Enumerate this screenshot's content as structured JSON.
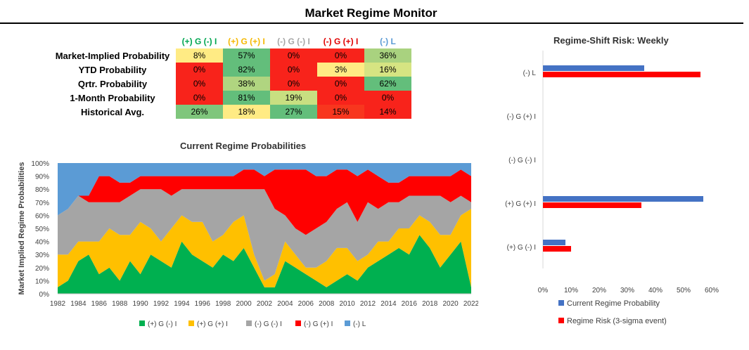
{
  "title": "Market Regime Monitor",
  "table": {
    "columns": [
      {
        "label": "(+) G (-) I",
        "color": "#00a651"
      },
      {
        "label": "(+) G (+) I",
        "color": "#f5b800"
      },
      {
        "label": "(-) G (-) I",
        "color": "#a6a6a6"
      },
      {
        "label": "(-) G (+) I",
        "color": "#e00000"
      },
      {
        "label": "(-) L",
        "color": "#5b9bd5"
      }
    ],
    "rows": [
      {
        "label": "Market-Implied Probability",
        "cells": [
          {
            "value": "8%",
            "bg": "#ffeb84"
          },
          {
            "value": "57%",
            "bg": "#63be7b"
          },
          {
            "value": "0%",
            "bg": "#f8231b"
          },
          {
            "value": "0%",
            "bg": "#f8231b"
          },
          {
            "value": "36%",
            "bg": "#a9d27f"
          }
        ]
      },
      {
        "label": "YTD Probability",
        "cells": [
          {
            "value": "0%",
            "bg": "#f8231b"
          },
          {
            "value": "82%",
            "bg": "#63be7b"
          },
          {
            "value": "0%",
            "bg": "#f8231b"
          },
          {
            "value": "3%",
            "bg": "#ffeb84"
          },
          {
            "value": "16%",
            "bg": "#d6e482"
          }
        ]
      },
      {
        "label": "Qrtr. Probability",
        "cells": [
          {
            "value": "0%",
            "bg": "#f8231b"
          },
          {
            "value": "38%",
            "bg": "#b0d580"
          },
          {
            "value": "0%",
            "bg": "#f8231b"
          },
          {
            "value": "0%",
            "bg": "#f8231b"
          },
          {
            "value": "62%",
            "bg": "#63be7b"
          }
        ]
      },
      {
        "label": "1-Month Probability",
        "cells": [
          {
            "value": "0%",
            "bg": "#f8231b"
          },
          {
            "value": "81%",
            "bg": "#63be7b"
          },
          {
            "value": "19%",
            "bg": "#c8df81"
          },
          {
            "value": "0%",
            "bg": "#f8231b"
          },
          {
            "value": "0%",
            "bg": "#f8231b"
          }
        ]
      },
      {
        "label": "Historical Avg.",
        "cells": [
          {
            "value": "26%",
            "bg": "#7fc67c"
          },
          {
            "value": "18%",
            "bg": "#ffeb84"
          },
          {
            "value": "27%",
            "bg": "#63be7b"
          },
          {
            "value": "15%",
            "bg": "#f8361e"
          },
          {
            "value": "14%",
            "bg": "#f8231b"
          }
        ]
      }
    ]
  },
  "chart_data": [
    {
      "type": "area",
      "title": "Current Regime Probabilities",
      "ylabel": "Market Implied Regime Probabilities",
      "x": [
        1982,
        1983,
        1984,
        1985,
        1986,
        1987,
        1988,
        1989,
        1990,
        1991,
        1992,
        1993,
        1994,
        1995,
        1996,
        1997,
        1998,
        1999,
        2000,
        2001,
        2002,
        2003,
        2004,
        2005,
        2006,
        2007,
        2008,
        2009,
        2010,
        2011,
        2012,
        2013,
        2014,
        2015,
        2016,
        2017,
        2018,
        2019,
        2020,
        2021,
        2022
      ],
      "x_ticks": [
        "1982",
        "1984",
        "1986",
        "1988",
        "1990",
        "1992",
        "1994",
        "1996",
        "1998",
        "2000",
        "2002",
        "2004",
        "2006",
        "2008",
        "2010",
        "2012",
        "2014",
        "2016",
        "2018",
        "2020",
        "2022"
      ],
      "y_ticks": [
        "0%",
        "10%",
        "20%",
        "30%",
        "40%",
        "50%",
        "60%",
        "70%",
        "80%",
        "90%",
        "100%"
      ],
      "ylim": [
        0,
        100
      ],
      "stacked": true,
      "series": [
        {
          "name": "(+) G (-) I",
          "color": "#00b050",
          "values": [
            5,
            10,
            25,
            30,
            15,
            20,
            10,
            25,
            15,
            30,
            25,
            20,
            40,
            30,
            25,
            20,
            30,
            25,
            35,
            20,
            5,
            5,
            25,
            20,
            15,
            10,
            5,
            10,
            15,
            10,
            20,
            25,
            30,
            35,
            30,
            45,
            35,
            20,
            30,
            40,
            5
          ]
        },
        {
          "name": "(+) G (+) I",
          "color": "#ffc000",
          "values": [
            25,
            20,
            15,
            10,
            25,
            30,
            35,
            20,
            40,
            20,
            15,
            30,
            20,
            25,
            30,
            20,
            15,
            30,
            25,
            10,
            5,
            10,
            15,
            10,
            5,
            10,
            20,
            25,
            20,
            15,
            10,
            15,
            10,
            15,
            20,
            15,
            20,
            25,
            15,
            20,
            60
          ]
        },
        {
          "name": "(-) G (-) I",
          "color": "#a5a5a5",
          "values": [
            30,
            35,
            35,
            30,
            30,
            20,
            25,
            30,
            25,
            30,
            40,
            25,
            20,
            25,
            25,
            40,
            35,
            25,
            20,
            50,
            70,
            50,
            20,
            20,
            25,
            30,
            30,
            30,
            35,
            30,
            40,
            25,
            30,
            20,
            25,
            15,
            20,
            30,
            25,
            15,
            5
          ]
        },
        {
          "name": "(-) G (+) I",
          "color": "#ff0000",
          "values": [
            0,
            0,
            0,
            5,
            20,
            20,
            15,
            10,
            10,
            10,
            10,
            15,
            10,
            10,
            10,
            10,
            10,
            10,
            15,
            15,
            10,
            30,
            35,
            45,
            50,
            40,
            35,
            30,
            25,
            35,
            25,
            25,
            15,
            15,
            15,
            15,
            15,
            15,
            20,
            20,
            20
          ]
        },
        {
          "name": "(-) L",
          "color": "#5b9bd5",
          "values": [
            40,
            35,
            25,
            25,
            10,
            10,
            15,
            15,
            10,
            10,
            10,
            10,
            10,
            10,
            10,
            10,
            10,
            10,
            5,
            5,
            10,
            5,
            5,
            5,
            5,
            10,
            10,
            5,
            5,
            10,
            5,
            10,
            15,
            15,
            10,
            10,
            10,
            10,
            10,
            5,
            10
          ]
        }
      ]
    },
    {
      "type": "bar",
      "orientation": "horizontal",
      "title": "Regime-Shift Risk: Weekly",
      "categories": [
        "(-) L",
        "(-) G (+) I",
        "(-) G (-) I",
        "(+) G (+) I",
        "(+) G (-) I"
      ],
      "x_ticks": [
        "0%",
        "10%",
        "20%",
        "30%",
        "40%",
        "50%",
        "60%"
      ],
      "xlim": [
        0,
        60
      ],
      "series": [
        {
          "name": "Current Regime Probability",
          "color": "#4472c4",
          "values": [
            36,
            0,
            0,
            57,
            8
          ]
        },
        {
          "name": "Regime Risk (3-sigma event)",
          "color": "#ff0000",
          "values": [
            56,
            0,
            0,
            35,
            10
          ]
        }
      ]
    }
  ]
}
